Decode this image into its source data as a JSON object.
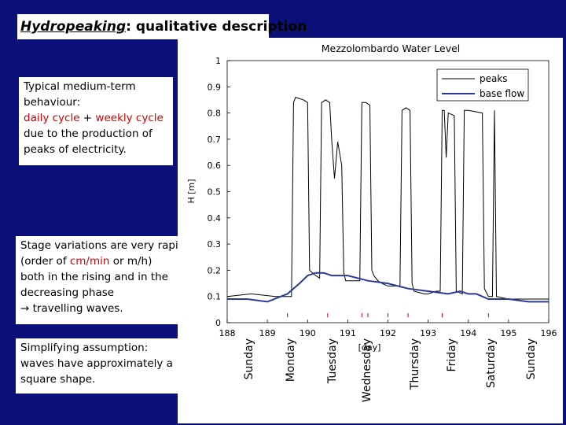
{
  "slide": {
    "title_em": "Hydropeaking",
    "title_rest": ": qualitative description"
  },
  "box1": {
    "line1": "Typical medium-term",
    "line2": "behaviour:",
    "red1": "daily cycle",
    "plus": " + ",
    "red2": "weekly cycle",
    "line4": "due to the production of",
    "line5": "peaks of electricity."
  },
  "box2": {
    "line1": "Stage variations are very rapid",
    "l2a": "(order of ",
    "l2red": "cm/min",
    "l2b": " or m/h)",
    "line3": "both in the rising and in the",
    "line4": "decreasing phase",
    "line5": "→ travelling waves."
  },
  "box3": {
    "line1": "Simplifying assumption:",
    "line2": "waves have approximately a",
    "line3": "square shape."
  },
  "colors": {
    "background": "#0b1078",
    "accent": "#d00000",
    "peaks": "#000000",
    "base_flow": "#2a3a9a"
  },
  "days": [
    "Sunday",
    "Monday",
    "Tuesday",
    "Wednesday",
    "Thursday",
    "Friday",
    "Saturday",
    "Sunday"
  ],
  "chart_data": {
    "type": "line",
    "title": "Mezzolombardo Water Level",
    "xlabel": "[day]",
    "ylabel": "H [m]",
    "xlim": [
      188,
      196
    ],
    "ylim": [
      0,
      1
    ],
    "xticks": [
      "188",
      "189",
      "190",
      "191",
      "192",
      "193",
      "194",
      "195",
      "196"
    ],
    "yticks": [
      "0",
      "0.1",
      "0.2",
      "0.3",
      "0.4",
      "0.5",
      "0.6",
      "0.7",
      "0.8",
      "0.9",
      "1"
    ],
    "legend": "top-right",
    "series": [
      {
        "name": "peaks",
        "x": [
          188.0,
          188.6,
          189.2,
          189.6,
          189.65,
          189.7,
          189.9,
          190.0,
          190.05,
          190.2,
          190.3,
          190.35,
          190.45,
          190.55,
          190.6,
          190.67,
          190.75,
          190.85,
          190.9,
          190.95,
          191.0,
          191.2,
          191.3,
          191.35,
          191.45,
          191.55,
          191.6,
          191.65,
          191.75,
          191.85,
          192.0,
          192.3,
          192.35,
          192.45,
          192.55,
          192.6,
          192.65,
          192.9,
          193.0,
          193.2,
          193.3,
          193.35,
          193.4,
          193.45,
          193.5,
          193.65,
          193.7,
          193.85,
          193.9,
          194.0,
          194.35,
          194.4,
          194.5,
          194.6,
          194.65,
          194.7,
          195.0,
          195.5,
          196.0
        ],
        "y": [
          0.1,
          0.11,
          0.1,
          0.1,
          0.84,
          0.86,
          0.85,
          0.84,
          0.2,
          0.18,
          0.17,
          0.84,
          0.85,
          0.84,
          0.7,
          0.55,
          0.69,
          0.6,
          0.19,
          0.16,
          0.16,
          0.16,
          0.16,
          0.84,
          0.84,
          0.83,
          0.2,
          0.18,
          0.16,
          0.15,
          0.14,
          0.14,
          0.81,
          0.82,
          0.81,
          0.15,
          0.12,
          0.11,
          0.11,
          0.12,
          0.12,
          0.81,
          0.81,
          0.63,
          0.8,
          0.79,
          0.12,
          0.11,
          0.81,
          0.81,
          0.8,
          0.13,
          0.1,
          0.1,
          0.81,
          0.1,
          0.09,
          0.09,
          0.09
        ]
      },
      {
        "name": "base flow",
        "x": [
          188.0,
          188.5,
          189.0,
          189.5,
          189.8,
          190.0,
          190.2,
          190.4,
          190.6,
          191.0,
          191.5,
          192.0,
          192.5,
          193.0,
          193.5,
          193.8,
          194.0,
          194.2,
          194.5,
          195.0,
          195.5,
          196.0
        ],
        "y": [
          0.09,
          0.09,
          0.08,
          0.11,
          0.15,
          0.18,
          0.19,
          0.19,
          0.18,
          0.18,
          0.16,
          0.15,
          0.13,
          0.12,
          0.11,
          0.12,
          0.11,
          0.11,
          0.09,
          0.09,
          0.08,
          0.08
        ]
      }
    ],
    "markers_x": [
      189.5,
      190.5,
      191.35,
      191.5,
      192.0,
      192.5,
      193.35,
      194.5
    ]
  }
}
